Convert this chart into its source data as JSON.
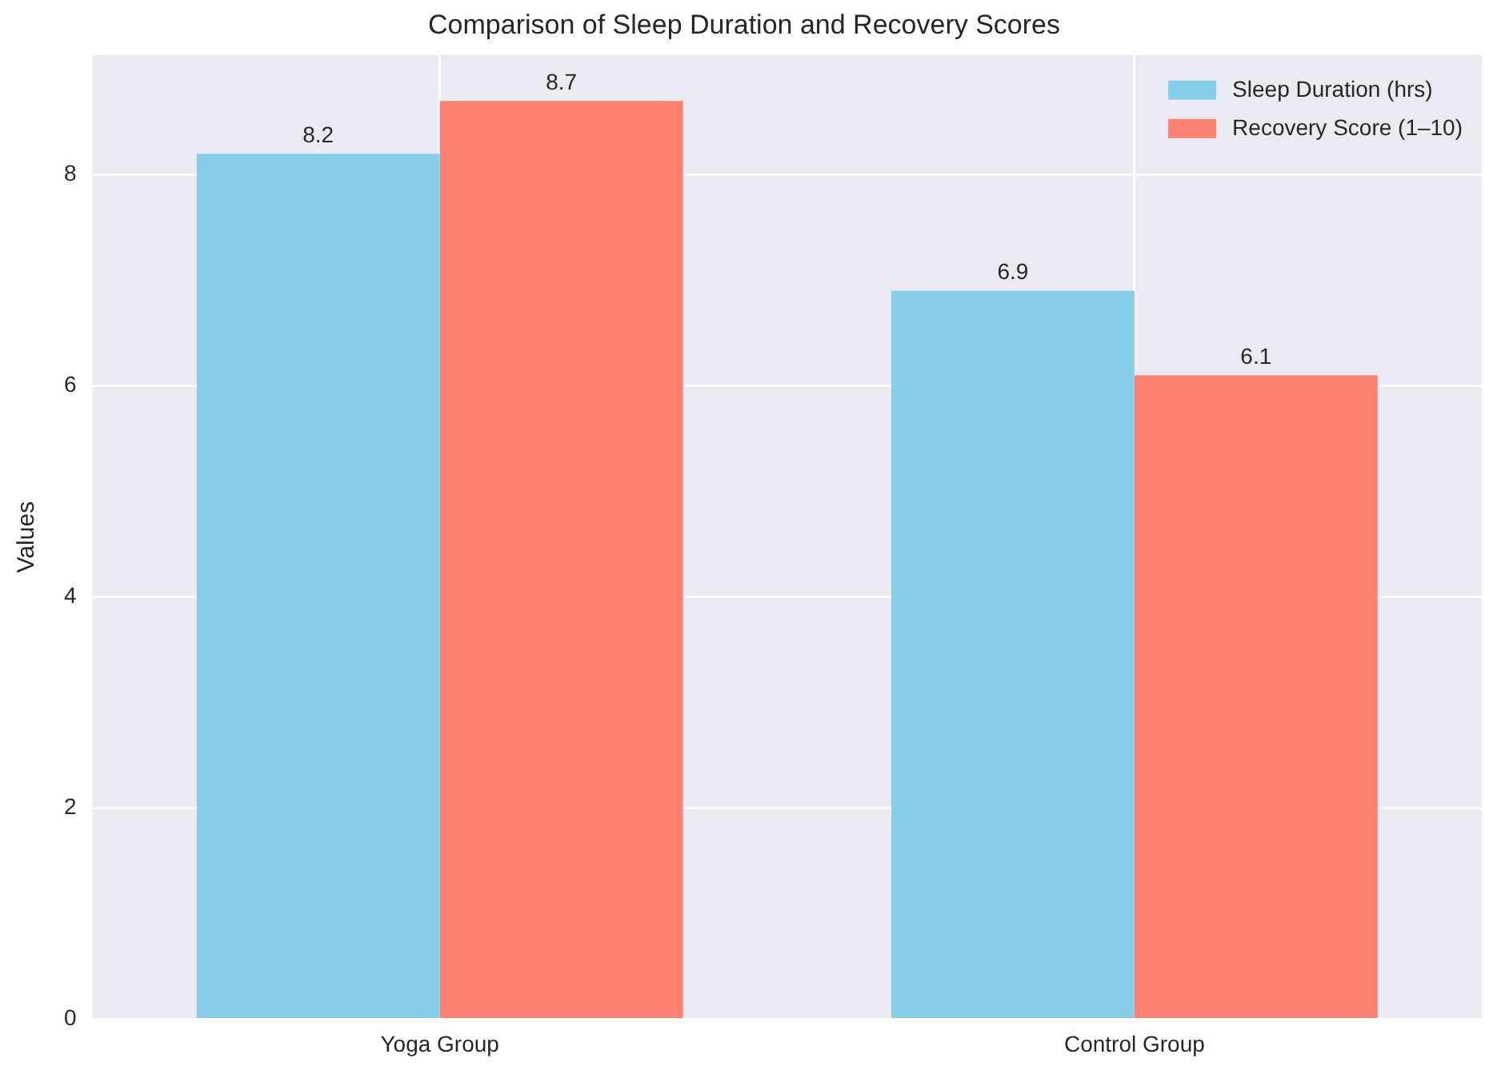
{
  "chart_data": {
    "type": "bar",
    "title": "Comparison of Sleep Duration and Recovery Scores",
    "ylabel": "Values",
    "categories": [
      "Yoga Group",
      "Control Group"
    ],
    "series": [
      {
        "name": "Sleep Duration (hrs)",
        "color": "#87ceeb",
        "values": [
          8.2,
          6.9
        ]
      },
      {
        "name": "Recovery Score (1–10)",
        "color": "#fa8072",
        "values": [
          8.7,
          6.1
        ]
      }
    ],
    "ylim": [
      0,
      9.135
    ],
    "yticks": [
      0,
      2,
      4,
      6,
      8
    ],
    "grid": true,
    "legend": "top right",
    "data_labels": true
  }
}
